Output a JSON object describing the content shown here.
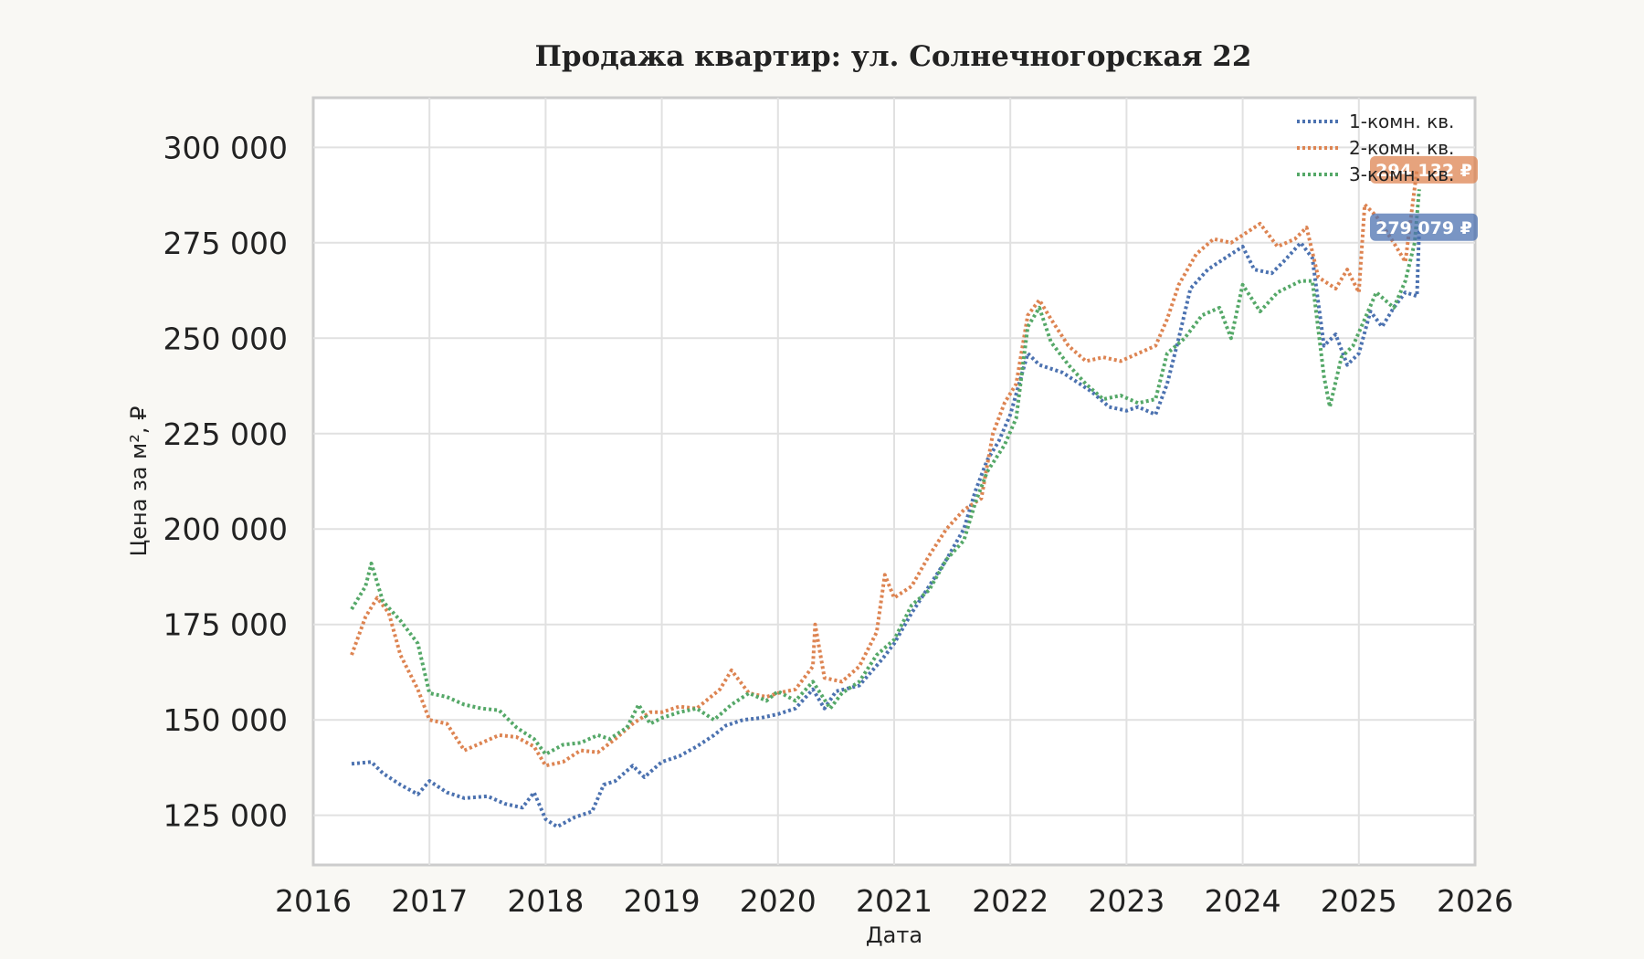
{
  "chart_data": {
    "type": "line",
    "title": "Продажа квартир: ул. Солнечногорская 22",
    "xlabel": "Дата",
    "ylabel": "Цена за м², ₽",
    "xlim": [
      2016.0,
      2026.0
    ],
    "ylim": [
      112000,
      313000
    ],
    "x_ticks": [
      "2016",
      "2017",
      "2018",
      "2019",
      "2020",
      "2021",
      "2022",
      "2023",
      "2024",
      "2025",
      "2026"
    ],
    "y_ticks": [
      "125 000",
      "150 000",
      "175 000",
      "200 000",
      "225 000",
      "250 000",
      "275 000",
      "300 000"
    ],
    "y_tick_values": [
      125000,
      150000,
      175000,
      200000,
      225000,
      250000,
      275000,
      300000
    ],
    "grid": true,
    "legend_position": "top-right",
    "series": [
      {
        "name": "1-комн. кв.",
        "color": "#4c72b0",
        "end_label": "279 079 ₽",
        "end_value": 279079,
        "points": [
          [
            2016.33,
            138500
          ],
          [
            2016.5,
            139000
          ],
          [
            2016.6,
            136000
          ],
          [
            2016.75,
            133000
          ],
          [
            2016.9,
            130500
          ],
          [
            2017.0,
            134000
          ],
          [
            2017.15,
            131000
          ],
          [
            2017.3,
            129500
          ],
          [
            2017.5,
            130000
          ],
          [
            2017.65,
            128000
          ],
          [
            2017.8,
            127000
          ],
          [
            2017.9,
            131000
          ],
          [
            2018.0,
            124000
          ],
          [
            2018.1,
            122000
          ],
          [
            2018.25,
            124500
          ],
          [
            2018.4,
            126000
          ],
          [
            2018.5,
            133000
          ],
          [
            2018.6,
            134000
          ],
          [
            2018.75,
            138000
          ],
          [
            2018.85,
            135000
          ],
          [
            2019.0,
            139000
          ],
          [
            2019.15,
            140500
          ],
          [
            2019.3,
            143000
          ],
          [
            2019.45,
            146000
          ],
          [
            2019.55,
            148500
          ],
          [
            2019.7,
            150000
          ],
          [
            2019.85,
            150500
          ],
          [
            2020.0,
            151500
          ],
          [
            2020.15,
            153000
          ],
          [
            2020.3,
            158000
          ],
          [
            2020.4,
            153000
          ],
          [
            2020.5,
            157500
          ],
          [
            2020.7,
            159000
          ],
          [
            2020.9,
            166000
          ],
          [
            2021.0,
            170000
          ],
          [
            2021.15,
            178000
          ],
          [
            2021.3,
            185000
          ],
          [
            2021.45,
            192000
          ],
          [
            2021.6,
            200000
          ],
          [
            2021.7,
            210000
          ],
          [
            2021.8,
            218000
          ],
          [
            2021.9,
            223000
          ],
          [
            2022.0,
            230000
          ],
          [
            2022.15,
            246000
          ],
          [
            2022.25,
            243000
          ],
          [
            2022.35,
            242000
          ],
          [
            2022.45,
            241000
          ],
          [
            2022.55,
            239000
          ],
          [
            2022.7,
            236000
          ],
          [
            2022.85,
            232000
          ],
          [
            2023.0,
            231000
          ],
          [
            2023.1,
            232000
          ],
          [
            2023.25,
            230000
          ],
          [
            2023.35,
            238000
          ],
          [
            2023.45,
            250000
          ],
          [
            2023.55,
            263000
          ],
          [
            2023.7,
            268000
          ],
          [
            2023.85,
            271000
          ],
          [
            2024.0,
            274000
          ],
          [
            2024.1,
            268000
          ],
          [
            2024.25,
            267000
          ],
          [
            2024.35,
            270000
          ],
          [
            2024.5,
            275000
          ],
          [
            2024.6,
            271000
          ],
          [
            2024.7,
            248000
          ],
          [
            2024.8,
            251000
          ],
          [
            2024.9,
            243000
          ],
          [
            2025.0,
            246000
          ],
          [
            2025.1,
            257000
          ],
          [
            2025.2,
            253000
          ],
          [
            2025.3,
            258000
          ],
          [
            2025.4,
            262000
          ],
          [
            2025.5,
            261000
          ],
          [
            2025.52,
            279079
          ]
        ]
      },
      {
        "name": "2-комн. кв.",
        "color": "#dd8452",
        "end_label": "294 132 ₽",
        "end_value": 294132,
        "points": [
          [
            2016.33,
            167000
          ],
          [
            2016.45,
            177000
          ],
          [
            2016.55,
            182000
          ],
          [
            2016.65,
            178000
          ],
          [
            2016.75,
            167000
          ],
          [
            2016.9,
            158000
          ],
          [
            2017.0,
            150000
          ],
          [
            2017.15,
            149000
          ],
          [
            2017.3,
            142000
          ],
          [
            2017.45,
            144000
          ],
          [
            2017.6,
            146000
          ],
          [
            2017.75,
            145500
          ],
          [
            2017.9,
            143000
          ],
          [
            2018.0,
            138000
          ],
          [
            2018.15,
            139000
          ],
          [
            2018.3,
            142000
          ],
          [
            2018.45,
            141500
          ],
          [
            2018.6,
            145000
          ],
          [
            2018.75,
            149000
          ],
          [
            2018.9,
            152000
          ],
          [
            2019.0,
            152000
          ],
          [
            2019.15,
            153500
          ],
          [
            2019.3,
            153000
          ],
          [
            2019.5,
            158000
          ],
          [
            2019.6,
            163000
          ],
          [
            2019.75,
            157000
          ],
          [
            2019.9,
            156000
          ],
          [
            2020.0,
            157000
          ],
          [
            2020.15,
            158000
          ],
          [
            2020.3,
            164000
          ],
          [
            2020.32,
            175000
          ],
          [
            2020.4,
            161000
          ],
          [
            2020.55,
            160000
          ],
          [
            2020.7,
            164000
          ],
          [
            2020.85,
            173000
          ],
          [
            2020.92,
            188000
          ],
          [
            2021.0,
            182000
          ],
          [
            2021.15,
            185000
          ],
          [
            2021.3,
            193000
          ],
          [
            2021.45,
            200000
          ],
          [
            2021.6,
            205000
          ],
          [
            2021.75,
            208000
          ],
          [
            2021.85,
            225000
          ],
          [
            2021.95,
            233000
          ],
          [
            2022.05,
            238000
          ],
          [
            2022.15,
            256000
          ],
          [
            2022.25,
            260000
          ],
          [
            2022.35,
            255000
          ],
          [
            2022.5,
            248000
          ],
          [
            2022.65,
            244000
          ],
          [
            2022.8,
            245000
          ],
          [
            2022.95,
            244000
          ],
          [
            2023.1,
            246000
          ],
          [
            2023.25,
            248000
          ],
          [
            2023.35,
            255000
          ],
          [
            2023.45,
            264000
          ],
          [
            2023.6,
            272000
          ],
          [
            2023.75,
            276000
          ],
          [
            2023.9,
            275000
          ],
          [
            2024.0,
            277000
          ],
          [
            2024.15,
            280000
          ],
          [
            2024.3,
            274000
          ],
          [
            2024.45,
            276000
          ],
          [
            2024.55,
            279000
          ],
          [
            2024.65,
            266000
          ],
          [
            2024.8,
            263000
          ],
          [
            2024.9,
            268000
          ],
          [
            2025.0,
            262000
          ],
          [
            2025.05,
            285000
          ],
          [
            2025.15,
            282000
          ],
          [
            2025.3,
            275000
          ],
          [
            2025.4,
            270000
          ],
          [
            2025.5,
            294132
          ]
        ]
      },
      {
        "name": "3-комн. кв.",
        "color": "#55a868",
        "end_label": "",
        "end_value": 289000,
        "points": [
          [
            2016.33,
            179000
          ],
          [
            2016.45,
            185000
          ],
          [
            2016.5,
            191000
          ],
          [
            2016.6,
            181000
          ],
          [
            2016.75,
            176000
          ],
          [
            2016.9,
            170000
          ],
          [
            2017.0,
            157000
          ],
          [
            2017.15,
            156000
          ],
          [
            2017.3,
            154000
          ],
          [
            2017.45,
            153000
          ],
          [
            2017.6,
            152500
          ],
          [
            2017.75,
            148000
          ],
          [
            2017.9,
            145000
          ],
          [
            2018.0,
            141000
          ],
          [
            2018.15,
            143500
          ],
          [
            2018.3,
            144000
          ],
          [
            2018.45,
            146000
          ],
          [
            2018.55,
            145000
          ],
          [
            2018.7,
            148000
          ],
          [
            2018.8,
            154000
          ],
          [
            2018.9,
            149000
          ],
          [
            2019.0,
            150500
          ],
          [
            2019.15,
            152000
          ],
          [
            2019.3,
            153000
          ],
          [
            2019.45,
            150000
          ],
          [
            2019.6,
            154000
          ],
          [
            2019.75,
            157000
          ],
          [
            2019.9,
            155000
          ],
          [
            2020.0,
            157500
          ],
          [
            2020.15,
            155000
          ],
          [
            2020.3,
            160000
          ],
          [
            2020.45,
            153000
          ],
          [
            2020.55,
            157000
          ],
          [
            2020.7,
            160000
          ],
          [
            2020.85,
            167000
          ],
          [
            2021.0,
            171000
          ],
          [
            2021.15,
            180000
          ],
          [
            2021.3,
            184000
          ],
          [
            2021.45,
            192000
          ],
          [
            2021.6,
            197000
          ],
          [
            2021.7,
            207000
          ],
          [
            2021.8,
            215000
          ],
          [
            2021.95,
            222000
          ],
          [
            2022.05,
            229000
          ],
          [
            2022.15,
            253000
          ],
          [
            2022.25,
            258000
          ],
          [
            2022.35,
            249000
          ],
          [
            2022.5,
            243000
          ],
          [
            2022.65,
            238000
          ],
          [
            2022.8,
            234000
          ],
          [
            2022.95,
            235000
          ],
          [
            2023.1,
            233000
          ],
          [
            2023.25,
            234000
          ],
          [
            2023.35,
            246000
          ],
          [
            2023.5,
            250000
          ],
          [
            2023.65,
            256000
          ],
          [
            2023.8,
            258000
          ],
          [
            2023.9,
            250000
          ],
          [
            2024.0,
            264000
          ],
          [
            2024.15,
            257000
          ],
          [
            2024.3,
            262000
          ],
          [
            2024.5,
            265000
          ],
          [
            2024.6,
            265000
          ],
          [
            2024.7,
            240000
          ],
          [
            2024.75,
            232000
          ],
          [
            2024.85,
            245000
          ],
          [
            2024.95,
            248000
          ],
          [
            2025.05,
            255000
          ],
          [
            2025.15,
            262000
          ],
          [
            2025.3,
            258000
          ],
          [
            2025.4,
            265000
          ],
          [
            2025.48,
            275000
          ],
          [
            2025.52,
            289000
          ]
        ]
      }
    ]
  }
}
